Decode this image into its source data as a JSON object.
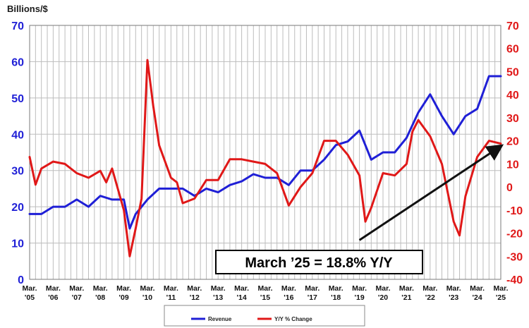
{
  "chart_data": {
    "type": "line",
    "ylabel_left": "Billions/$",
    "ylim_left": [
      0,
      70
    ],
    "yticks_left": [
      "0",
      "10",
      "20",
      "30",
      "40",
      "50",
      "60",
      "70"
    ],
    "ylim_right": [
      -40,
      70
    ],
    "yticks_right": [
      "-40",
      "-30",
      "-20",
      "-10",
      "0",
      "10",
      "20",
      "30",
      "40",
      "50",
      "60",
      "70"
    ],
    "x_labels": [
      [
        "Mar.",
        "'05"
      ],
      [
        "Mar.",
        "'06"
      ],
      [
        "Mar.",
        "'07"
      ],
      [
        "Mar.",
        "'08"
      ],
      [
        "Mar.",
        "'09"
      ],
      [
        "Mar.",
        "'10"
      ],
      [
        "Mar.",
        "'11"
      ],
      [
        "Mar.",
        "'12"
      ],
      [
        "Mar.",
        "'13"
      ],
      [
        "Mar.",
        "'14"
      ],
      [
        "Mar.",
        "'15"
      ],
      [
        "Mar.",
        "'16"
      ],
      [
        "Mar.",
        "'17"
      ],
      [
        "Mar.",
        "'18"
      ],
      [
        "Mar.",
        "'19"
      ],
      [
        "Mar.",
        "'20"
      ],
      [
        "Mar.",
        "'21"
      ],
      [
        "Mar.",
        "'22"
      ],
      [
        "Mar.",
        "'23"
      ],
      [
        "Mar.",
        "'24"
      ],
      [
        "Mar.",
        "'25"
      ]
    ],
    "grid": true,
    "legend_position": "bottom",
    "annotation": "March ’25 = 18.8% Y/Y",
    "series": [
      {
        "name": "Revenue",
        "axis": "left",
        "color": "#1f1fd6",
        "x": [
          2005.0,
          2005.5,
          2006.0,
          2006.5,
          2007.0,
          2007.5,
          2008.0,
          2008.5,
          2009.0,
          2009.25,
          2009.5,
          2010.0,
          2010.5,
          2011.0,
          2011.5,
          2012.0,
          2012.5,
          2013.0,
          2013.5,
          2014.0,
          2014.5,
          2015.0,
          2015.5,
          2016.0,
          2016.5,
          2017.0,
          2017.5,
          2018.0,
          2018.5,
          2019.0,
          2019.5,
          2020.0,
          2020.5,
          2021.0,
          2021.5,
          2022.0,
          2022.5,
          2023.0,
          2023.5,
          2024.0,
          2024.5,
          2025.0
        ],
        "values": [
          18,
          18,
          20,
          20,
          22,
          20,
          23,
          22,
          22,
          14,
          18,
          22,
          25,
          25,
          25,
          23,
          25,
          24,
          26,
          27,
          29,
          28,
          28,
          26,
          30,
          30,
          33,
          37,
          38,
          41,
          33,
          35,
          35,
          39,
          46,
          51,
          45,
          40,
          45,
          47,
          56,
          56
        ]
      },
      {
        "name": "Y/Y % Change",
        "axis": "right",
        "color": "#e01818",
        "x": [
          2005.0,
          2005.25,
          2005.5,
          2006.0,
          2006.5,
          2007.0,
          2007.5,
          2008.0,
          2008.25,
          2008.5,
          2009.0,
          2009.25,
          2009.5,
          2009.75,
          2010.0,
          2010.25,
          2010.5,
          2011.0,
          2011.25,
          2011.5,
          2012.0,
          2012.5,
          2013.0,
          2013.5,
          2014.0,
          2014.5,
          2015.0,
          2015.5,
          2016.0,
          2016.5,
          2017.0,
          2017.5,
          2018.0,
          2018.5,
          2019.0,
          2019.25,
          2019.5,
          2020.0,
          2020.5,
          2021.0,
          2021.25,
          2021.5,
          2022.0,
          2022.5,
          2023.0,
          2023.25,
          2023.5,
          2024.0,
          2024.5,
          2025.0
        ],
        "values": [
          13,
          1,
          8,
          11,
          10,
          6,
          4,
          7,
          2,
          8,
          -10,
          -30,
          -18,
          -5,
          55,
          35,
          18,
          4,
          2,
          -7,
          -5,
          3,
          3,
          12,
          12,
          11,
          10,
          6,
          -8,
          0,
          6,
          20,
          20,
          14,
          5,
          -15,
          -9,
          6,
          5,
          10,
          24,
          29,
          22,
          10,
          -15,
          -21,
          -4,
          13,
          20,
          18.8
        ]
      }
    ]
  },
  "legend": {
    "items": [
      {
        "label": "Revenue",
        "color": "#1f1fd6"
      },
      {
        "label": "Y/Y % Change",
        "color": "#e01818"
      }
    ]
  }
}
